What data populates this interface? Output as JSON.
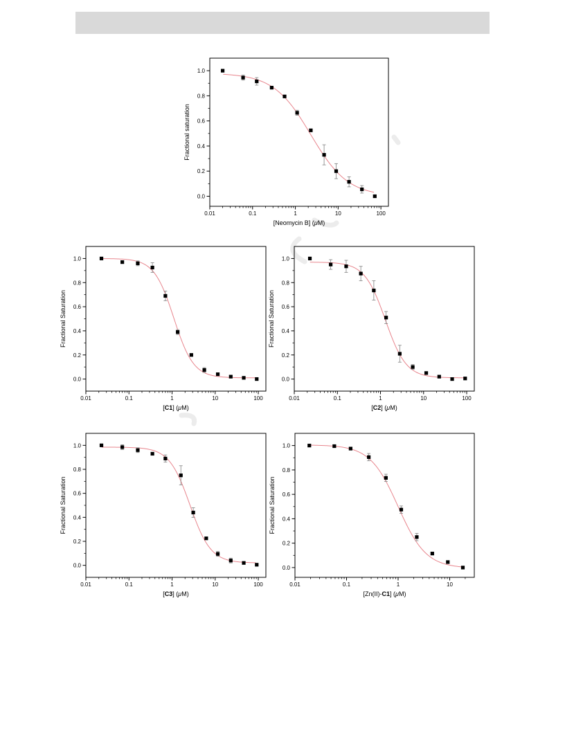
{
  "chart_data": [
    {
      "type": "scatter",
      "xscale": "log",
      "xlim": [
        0.01,
        150
      ],
      "ylim": [
        -0.08,
        1.1
      ],
      "xticks": [
        0.01,
        0.1,
        1,
        10,
        100
      ],
      "xtick_labels": [
        "0.01",
        "0.1",
        "1",
        "10",
        "100"
      ],
      "yticks": [
        0,
        0.2,
        0.4,
        0.6,
        0.8,
        1.0
      ],
      "ytick_labels": [
        "0.0",
        "0.2",
        "0.4",
        "0.6",
        "0.8",
        "1.0"
      ],
      "xlabel": "[Neomycin B] (μM)",
      "xlabel_parts": [
        [
          "[Neomycin B] (",
          false,
          false
        ],
        [
          "μ",
          false,
          true
        ],
        [
          "M)",
          false,
          false
        ]
      ],
      "ylabel": "Fractional saturation",
      "fit": {
        "ic50": 2.3,
        "hill": 1.0,
        "top": 0.98,
        "bottom": 0.0
      },
      "points": [
        {
          "x": 0.02,
          "y": 1.0,
          "err": 0.0
        },
        {
          "x": 0.06,
          "y": 0.945,
          "err": 0.02
        },
        {
          "x": 0.125,
          "y": 0.915,
          "err": 0.03
        },
        {
          "x": 0.28,
          "y": 0.865,
          "err": 0.01
        },
        {
          "x": 0.56,
          "y": 0.795,
          "err": 0.01
        },
        {
          "x": 1.1,
          "y": 0.665,
          "err": 0.02
        },
        {
          "x": 2.3,
          "y": 0.525,
          "err": 0.01
        },
        {
          "x": 4.7,
          "y": 0.33,
          "err": 0.08
        },
        {
          "x": 9.0,
          "y": 0.2,
          "err": 0.06
        },
        {
          "x": 18,
          "y": 0.115,
          "err": 0.04
        },
        {
          "x": 36,
          "y": 0.055,
          "err": 0.03
        },
        {
          "x": 72,
          "y": 0.0,
          "err": 0.01
        }
      ]
    },
    {
      "type": "scatter",
      "xscale": "log",
      "xlim": [
        0.01,
        150
      ],
      "ylim": [
        -0.1,
        1.1
      ],
      "xticks": [
        0.01,
        0.1,
        1,
        10,
        100
      ],
      "xtick_labels": [
        "0.01",
        "0.1",
        "1",
        "10",
        "100"
      ],
      "yticks": [
        0,
        0.2,
        0.4,
        0.6,
        0.8,
        1.0
      ],
      "ytick_labels": [
        "0.0",
        "0.2",
        "0.4",
        "0.6",
        "0.8",
        "1.0"
      ],
      "xlabel": "[C1] (μM)",
      "xlabel_parts": [
        [
          "[",
          false,
          false
        ],
        [
          "C1",
          true,
          false
        ],
        [
          "] (",
          false,
          false
        ],
        [
          "μ",
          false,
          true
        ],
        [
          "M)",
          false,
          false
        ]
      ],
      "ylabel": "Fractional Saturation",
      "fit": {
        "ic50": 1.1,
        "hill": 1.9,
        "top": 1.0,
        "bottom": 0.01
      },
      "points": [
        {
          "x": 0.023,
          "y": 1.0,
          "err": 0.0
        },
        {
          "x": 0.07,
          "y": 0.97,
          "err": 0.01
        },
        {
          "x": 0.16,
          "y": 0.96,
          "err": 0.02
        },
        {
          "x": 0.35,
          "y": 0.925,
          "err": 0.04
        },
        {
          "x": 0.7,
          "y": 0.69,
          "err": 0.04
        },
        {
          "x": 1.35,
          "y": 0.39,
          "err": 0.02
        },
        {
          "x": 2.8,
          "y": 0.2,
          "err": 0.01
        },
        {
          "x": 5.6,
          "y": 0.075,
          "err": 0.02
        },
        {
          "x": 11.5,
          "y": 0.04,
          "err": 0.01
        },
        {
          "x": 23,
          "y": 0.02,
          "err": 0.0
        },
        {
          "x": 46,
          "y": 0.01,
          "err": 0.0
        },
        {
          "x": 92,
          "y": 0.0,
          "err": 0.0
        }
      ]
    },
    {
      "type": "scatter",
      "xscale": "log",
      "xlim": [
        0.01,
        150
      ],
      "ylim": [
        -0.1,
        1.1
      ],
      "xticks": [
        0.01,
        0.1,
        1,
        10,
        100
      ],
      "xtick_labels": [
        "0.01",
        "0.1",
        "1",
        "10",
        "100"
      ],
      "yticks": [
        0,
        0.2,
        0.4,
        0.6,
        0.8,
        1.0
      ],
      "ytick_labels": [
        "0.0",
        "0.2",
        "0.4",
        "0.6",
        "0.8",
        "1.0"
      ],
      "xlabel": "[C2] (μM)",
      "xlabel_parts": [
        [
          "[",
          false,
          false
        ],
        [
          "C2",
          true,
          false
        ],
        [
          "] (",
          false,
          false
        ],
        [
          "μ",
          false,
          true
        ],
        [
          "M)",
          false,
          false
        ]
      ],
      "ylabel": "Fractional Saturation",
      "fit": {
        "ic50": 1.3,
        "hill": 1.8,
        "top": 0.97,
        "bottom": 0.01
      },
      "points": [
        {
          "x": 0.023,
          "y": 1.0,
          "err": 0.0
        },
        {
          "x": 0.07,
          "y": 0.95,
          "err": 0.04
        },
        {
          "x": 0.16,
          "y": 0.935,
          "err": 0.05
        },
        {
          "x": 0.35,
          "y": 0.875,
          "err": 0.06
        },
        {
          "x": 0.7,
          "y": 0.735,
          "err": 0.08
        },
        {
          "x": 1.35,
          "y": 0.51,
          "err": 0.05
        },
        {
          "x": 2.8,
          "y": 0.21,
          "err": 0.07
        },
        {
          "x": 5.6,
          "y": 0.1,
          "err": 0.02
        },
        {
          "x": 11.5,
          "y": 0.05,
          "err": 0.0
        },
        {
          "x": 23,
          "y": 0.02,
          "err": 0.0
        },
        {
          "x": 46,
          "y": 0.0,
          "err": 0.0
        },
        {
          "x": 92,
          "y": 0.005,
          "err": 0.0
        }
      ]
    },
    {
      "type": "scatter",
      "xscale": "log",
      "xlim": [
        0.01,
        150
      ],
      "ylim": [
        -0.1,
        1.1
      ],
      "xticks": [
        0.01,
        0.1,
        1,
        10,
        100
      ],
      "xtick_labels": [
        "0.01",
        "0.1",
        "1",
        "10",
        "100"
      ],
      "yticks": [
        0,
        0.2,
        0.4,
        0.6,
        0.8,
        1.0
      ],
      "ytick_labels": [
        "0.0",
        "0.2",
        "0.4",
        "0.6",
        "0.8",
        "1.0"
      ],
      "xlabel": "[C3] (μM)",
      "xlabel_parts": [
        [
          "[",
          false,
          false
        ],
        [
          "C3",
          true,
          false
        ],
        [
          "] (",
          false,
          false
        ],
        [
          "μ",
          false,
          true
        ],
        [
          "M)",
          false,
          false
        ]
      ],
      "ylabel": "Fractional Saturation",
      "fit": {
        "ic50": 2.6,
        "hill": 1.8,
        "top": 0.985,
        "bottom": 0.02
      },
      "points": [
        {
          "x": 0.023,
          "y": 1.0,
          "err": 0.0
        },
        {
          "x": 0.07,
          "y": 0.985,
          "err": 0.02
        },
        {
          "x": 0.16,
          "y": 0.96,
          "err": 0.02
        },
        {
          "x": 0.35,
          "y": 0.93,
          "err": 0.01
        },
        {
          "x": 0.7,
          "y": 0.89,
          "err": 0.03
        },
        {
          "x": 1.6,
          "y": 0.75,
          "err": 0.08
        },
        {
          "x": 3.1,
          "y": 0.44,
          "err": 0.04
        },
        {
          "x": 6.2,
          "y": 0.225,
          "err": 0.01
        },
        {
          "x": 11.5,
          "y": 0.095,
          "err": 0.02
        },
        {
          "x": 23,
          "y": 0.04,
          "err": 0.02
        },
        {
          "x": 46,
          "y": 0.02,
          "err": 0.01
        },
        {
          "x": 92,
          "y": 0.005,
          "err": 0.0
        }
      ]
    },
    {
      "type": "scatter",
      "xscale": "log",
      "xlim": [
        0.01,
        30
      ],
      "ylim": [
        -0.08,
        1.1
      ],
      "xticks": [
        0.01,
        0.1,
        1,
        10
      ],
      "xtick_labels": [
        "0.01",
        "0.1",
        "1",
        "10"
      ],
      "yticks": [
        0,
        0.2,
        0.4,
        0.6,
        0.8,
        1.0
      ],
      "ytick_labels": [
        "0.0",
        "0.2",
        "0.4",
        "0.6",
        "0.8",
        "1.0"
      ],
      "xlabel": "[Zn(II)-C1] (μM)",
      "xlabel_parts": [
        [
          "[Zn(II)-",
          false,
          false
        ],
        [
          "C1",
          true,
          false
        ],
        [
          "] (",
          false,
          false
        ],
        [
          "μ",
          false,
          true
        ],
        [
          "M)",
          false,
          false
        ]
      ],
      "ylabel": "Fractional Saturation",
      "fit": {
        "ic50": 1.0,
        "hill": 1.6,
        "top": 1.005,
        "bottom": -0.005
      },
      "points": [
        {
          "x": 0.019,
          "y": 1.0,
          "err": 0.0
        },
        {
          "x": 0.058,
          "y": 0.995,
          "err": 0.01
        },
        {
          "x": 0.12,
          "y": 0.975,
          "err": 0.01
        },
        {
          "x": 0.27,
          "y": 0.905,
          "err": 0.03
        },
        {
          "x": 0.58,
          "y": 0.735,
          "err": 0.03
        },
        {
          "x": 1.15,
          "y": 0.475,
          "err": 0.03
        },
        {
          "x": 2.3,
          "y": 0.25,
          "err": 0.03
        },
        {
          "x": 4.6,
          "y": 0.115,
          "err": 0.01
        },
        {
          "x": 9.2,
          "y": 0.045,
          "err": 0.01
        },
        {
          "x": 18,
          "y": 0.0,
          "err": 0.0
        }
      ]
    }
  ],
  "colors": {
    "fit_line": "#e8848c",
    "marker": "#000000",
    "error_bar": "#808080",
    "header_bar": "#d9d9d9"
  }
}
